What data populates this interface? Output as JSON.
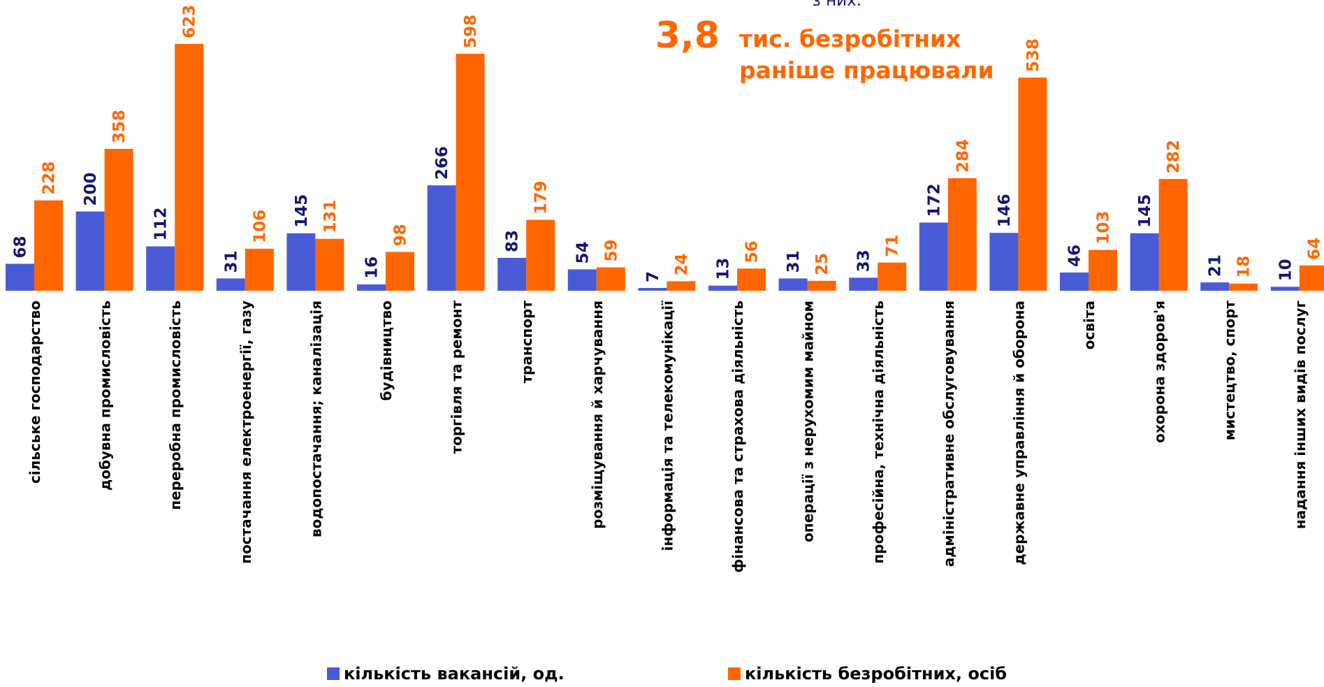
{
  "chart_data": {
    "type": "bar",
    "annotations": {
      "intro": "з них:",
      "number": "3,8",
      "line1": "тис. безробітних",
      "line2": "раніше працювали"
    },
    "categories": [
      "сільське господарство",
      "добувна промисловість",
      "переробна промисловість",
      "постачання електроенергії, газу",
      "водопостачання; каналізація",
      "будівництво",
      "торгівля та ремонт",
      "транспорт",
      "розміщування й харчування",
      "інформація та телекомунікації",
      "фінансова та страхова діяльність",
      "операції з нерухомим майном",
      "професійна, технічна діяльність",
      "адміністративне обслуговування",
      "державне управління й оборона",
      "освіта",
      "охорона здоров'я",
      "мистецтво, спорт",
      "надання інших видів послуг"
    ],
    "series": [
      {
        "name": "кількість вакансій, од.",
        "color": "#4a5bd6",
        "label_color": "#16166e",
        "values": [
          68,
          200,
          112,
          31,
          145,
          16,
          266,
          83,
          54,
          7,
          13,
          31,
          33,
          172,
          146,
          46,
          145,
          21,
          10
        ]
      },
      {
        "name": "кількість безробітних, осіб",
        "color": "#ff6600",
        "label_color": "#ff6600",
        "values": [
          228,
          358,
          623,
          106,
          131,
          98,
          598,
          179,
          59,
          24,
          56,
          25,
          71,
          284,
          538,
          103,
          282,
          18,
          64
        ]
      }
    ],
    "legend": "bottom"
  }
}
